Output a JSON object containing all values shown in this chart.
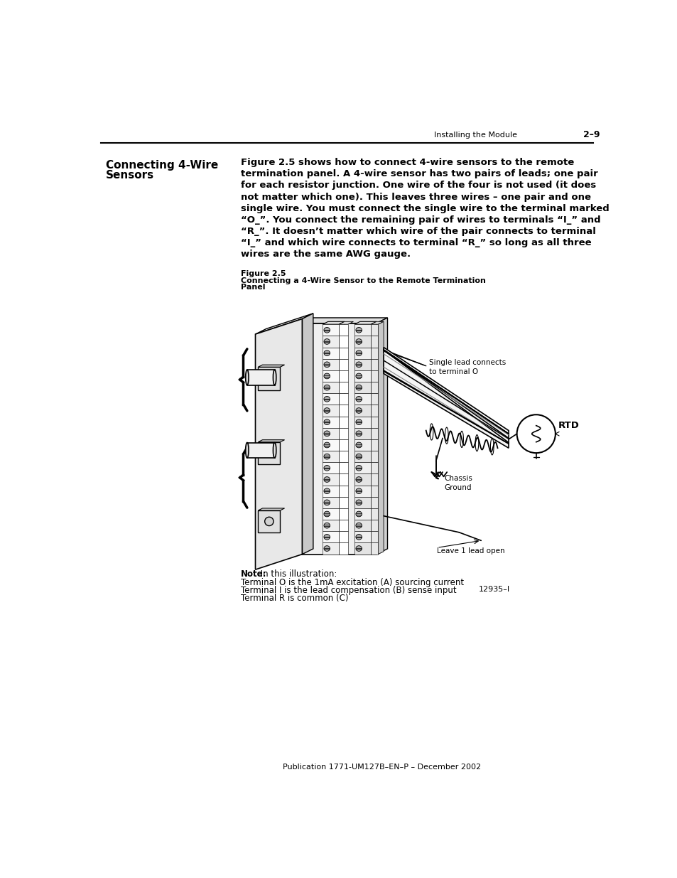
{
  "page_header_text": "Installing the Module",
  "page_number": "2–9",
  "section_title": "Connecting 4-Wire\nSensors",
  "body_text_lines": [
    "Figure 2.5 shows how to connect 4-wire sensors to the remote",
    "termination panel. A 4-wire sensor has two pairs of leads; one pair",
    "for each resistor junction. One wire of the four is not used (it does",
    "not matter which one). This leaves three wires – one pair and one",
    "single wire. You must connect the single wire to the terminal marked",
    "“O_”. You connect the remaining pair of wires to terminals “I_” and",
    "“R_”. It doesn’t matter which wire of the pair connects to terminal",
    "“I_” and which wire connects to terminal “R_” so long as all three",
    "wires are the same AWG gauge."
  ],
  "figure_label": "Figure 2.5",
  "figure_caption_line1": "Connecting a 4-Wire Sensor to the Remote Termination",
  "figure_caption_line2": "Panel",
  "note_bold": "Note:",
  "note_rest": " In this illustration:",
  "note_line2": "Terminal O is the 1mA excitation (A) sourcing current",
  "note_line3": "Terminal I is the lead compensation (B) sense input",
  "note_line4": "Terminal R is common (C)",
  "figure_id": "12935–I",
  "footer_text": "Publication 1771-UM127B–EN–P – December 2002",
  "bg_color": "#ffffff"
}
